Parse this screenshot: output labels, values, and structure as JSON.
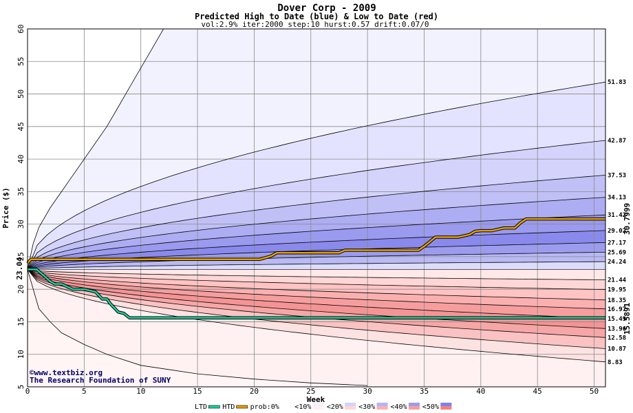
{
  "chart_data": {
    "type": "area",
    "title": "Dover Corp - 2009",
    "subtitle": "Predicted High to Date (blue) &  Low to Date (red)",
    "params": "vol:2.9% iter:2000 step:10 hurst:0.57 drift:0.07/0",
    "xlabel": "Week",
    "ylabel": "Price ($)",
    "xlim": [
      0,
      51
    ],
    "ylim": [
      5,
      60
    ],
    "x_ticks": [
      0,
      5,
      10,
      15,
      20,
      25,
      30,
      35,
      40,
      45,
      50
    ],
    "y_ticks": [
      5,
      10,
      15,
      20,
      25,
      30,
      35,
      40,
      45,
      50,
      55,
      60
    ],
    "grid": true,
    "start_price": 23.04,
    "start_label": "23.04",
    "high_percentile_end_values": [
      51.83,
      42.87,
      37.53,
      34.13,
      31.42,
      29.02,
      27.17,
      25.69,
      24.24
    ],
    "low_percentile_end_values": [
      21.44,
      19.95,
      18.35,
      16.97,
      15.49,
      13.96,
      12.58,
      10.87,
      8.83
    ],
    "right_labels": [
      "51.83",
      "42.87",
      "37.53",
      "34.13",
      "31.42",
      "29.02",
      "27.17",
      "25.69",
      "24.24",
      "21.44",
      "19.95",
      "18.35",
      "16.97",
      "15.49",
      "13.96",
      "12.58",
      "10.87",
      "8.83"
    ],
    "outer_upper": {
      "x": [
        0,
        0.5,
        1,
        2,
        3,
        4,
        5,
        6,
        7,
        8,
        9,
        10,
        11,
        12
      ],
      "y": [
        23.04,
        27,
        29.5,
        32.5,
        35,
        37.5,
        40,
        42.5,
        45,
        48,
        51,
        54,
        57,
        60
      ]
    },
    "outer_lower": {
      "x": [
        0,
        1,
        2,
        3,
        5,
        7,
        10,
        15,
        20,
        25,
        30
      ],
      "y": [
        23.04,
        17,
        15,
        13.3,
        11.5,
        10,
        8.3,
        7,
        6.2,
        5.6,
        5.2
      ]
    },
    "series": [
      {
        "name": "HTD",
        "color": "#e8a000",
        "x": [
          0,
          0.3,
          20.5,
          21.5,
          22,
          27.5,
          28,
          34.5,
          35,
          35.5,
          36,
          37,
          38,
          39,
          39.5,
          40,
          41,
          42,
          43,
          43.5,
          44,
          51
        ],
        "y": [
          24.0,
          24.6,
          24.6,
          25.1,
          25.6,
          25.6,
          26.0,
          26.0,
          26.6,
          27.3,
          28.0,
          28.0,
          28.0,
          28.4,
          28.9,
          29.0,
          29.0,
          29.4,
          29.4,
          30.2,
          30.8,
          30.8
        ]
      },
      {
        "name": "LTD",
        "color": "#20d0a0",
        "x": [
          0,
          0.8,
          1.5,
          2,
          2.4,
          3,
          4,
          5,
          6,
          6.6,
          7,
          7.3,
          8,
          8.5,
          9,
          10,
          51
        ],
        "y": [
          23.04,
          23.04,
          22.0,
          21.2,
          20.8,
          20.8,
          20.0,
          20.0,
          19.6,
          18.5,
          18.5,
          17.8,
          16.5,
          16.3,
          15.6,
          15.6,
          15.6
        ]
      }
    ],
    "end_labels": {
      "htd": "30.7999",
      "ltd": "15.5891"
    },
    "legend": {
      "items": [
        "LTD",
        "HTD",
        "prob:0%",
        "<10%",
        "<20%",
        "<30%",
        "<40%",
        "<50%"
      ],
      "placement": "bottom"
    },
    "credits": [
      "©www.textbiz.org",
      "The Research Foundation of SUNY"
    ],
    "colors": {
      "htd": "#e8a000",
      "ltd": "#20d0a0",
      "high_end_label": "#a07800",
      "ltd_end_label": "#008060"
    }
  }
}
